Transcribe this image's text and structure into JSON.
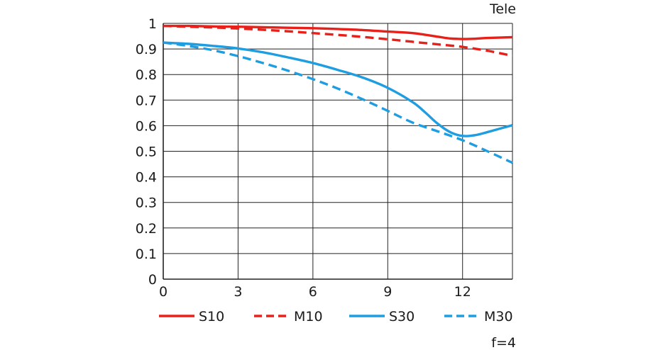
{
  "chart_data": {
    "type": "line",
    "title": "Tele",
    "footnote": "f=4",
    "xlabel": "",
    "ylabel": "",
    "xlim": [
      0,
      14
    ],
    "ylim": [
      0,
      1
    ],
    "x_ticks": [
      "0",
      "3",
      "6",
      "9",
      "12"
    ],
    "x_tick_values": [
      0,
      3,
      6,
      9,
      12
    ],
    "y_ticks": [
      "0",
      "0.1",
      "0.2",
      "0.3",
      "0.4",
      "0.5",
      "0.6",
      "0.7",
      "0.8",
      "0.9",
      "1"
    ],
    "y_tick_values": [
      0,
      0.1,
      0.2,
      0.3,
      0.4,
      0.5,
      0.6,
      0.7,
      0.8,
      0.9,
      1
    ],
    "grid": true,
    "legend_position": "bottom",
    "series": [
      {
        "name": "S10",
        "color": "#e8201a",
        "style": "solid",
        "x": [
          0,
          1,
          2,
          3,
          4,
          5,
          6,
          7,
          8,
          9,
          10,
          11,
          11.5,
          12,
          12.5,
          13,
          14
        ],
        "y": [
          0.99,
          0.99,
          0.988,
          0.987,
          0.985,
          0.983,
          0.981,
          0.978,
          0.974,
          0.968,
          0.962,
          0.948,
          0.941,
          0.939,
          0.94,
          0.943,
          0.946
        ]
      },
      {
        "name": "M10",
        "color": "#e8201a",
        "style": "dashed",
        "x": [
          0,
          1,
          2,
          3,
          4,
          5,
          6,
          7,
          8,
          9,
          10,
          11,
          12,
          13,
          14
        ],
        "y": [
          0.99,
          0.987,
          0.984,
          0.98,
          0.975,
          0.969,
          0.962,
          0.955,
          0.947,
          0.938,
          0.928,
          0.918,
          0.908,
          0.893,
          0.873
        ]
      },
      {
        "name": "S30",
        "color": "#1e9ee0",
        "style": "solid",
        "x": [
          0,
          1,
          2,
          3,
          4,
          5,
          6,
          7,
          8,
          9,
          10,
          10.5,
          11,
          11.5,
          12,
          12.5,
          13,
          14
        ],
        "y": [
          0.925,
          0.92,
          0.912,
          0.902,
          0.887,
          0.867,
          0.845,
          0.818,
          0.788,
          0.748,
          0.692,
          0.652,
          0.608,
          0.575,
          0.56,
          0.563,
          0.575,
          0.602
        ]
      },
      {
        "name": "M30",
        "color": "#1e9ee0",
        "style": "dashed",
        "x": [
          0,
          1,
          2,
          3,
          4,
          5,
          6,
          7,
          8,
          9,
          10,
          11,
          12,
          13,
          14
        ],
        "y": [
          0.925,
          0.912,
          0.895,
          0.872,
          0.845,
          0.815,
          0.782,
          0.745,
          0.703,
          0.658,
          0.612,
          0.578,
          0.543,
          0.5,
          0.455
        ]
      }
    ]
  }
}
